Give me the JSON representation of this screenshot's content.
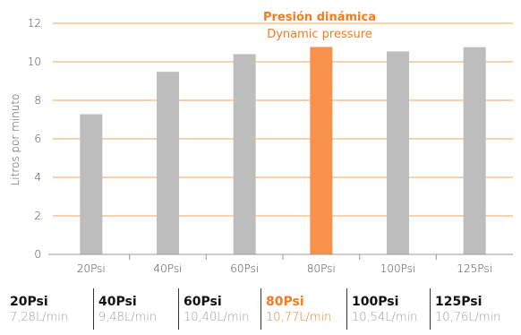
{
  "chart_data": {
    "type": "bar",
    "title_es": "Presión dinámica",
    "title_en": "Dynamic pressure",
    "ylabel": "Litros por minuto",
    "xlabel": "",
    "ylim": [
      0,
      12
    ],
    "yticks": [
      0,
      2,
      4,
      6,
      8,
      10,
      12
    ],
    "grid": "horizontal",
    "categories": [
      "20Psi",
      "40Psi",
      "60Psi",
      "80Psi",
      "100Psi",
      "125Psi"
    ],
    "values": [
      7.28,
      9.48,
      10.4,
      10.77,
      10.54,
      10.76
    ],
    "highlight_index": 3,
    "colors": {
      "bar": "#bdbdbd",
      "highlight": "#f7914b",
      "grid": "#f0a35c",
      "axis": "#999999",
      "accent": "#f37b22"
    }
  },
  "summary": [
    {
      "label": "20Psi",
      "value": "7,28L/min"
    },
    {
      "label": "40Psi",
      "value": "9,48L/min"
    },
    {
      "label": "60Psi",
      "value": "10,40L/min"
    },
    {
      "label": "80Psi",
      "value": "10,77L/min"
    },
    {
      "label": "100Psi",
      "value": "10,54L/min"
    },
    {
      "label": "125Psi",
      "value": "10,76L/min"
    }
  ]
}
